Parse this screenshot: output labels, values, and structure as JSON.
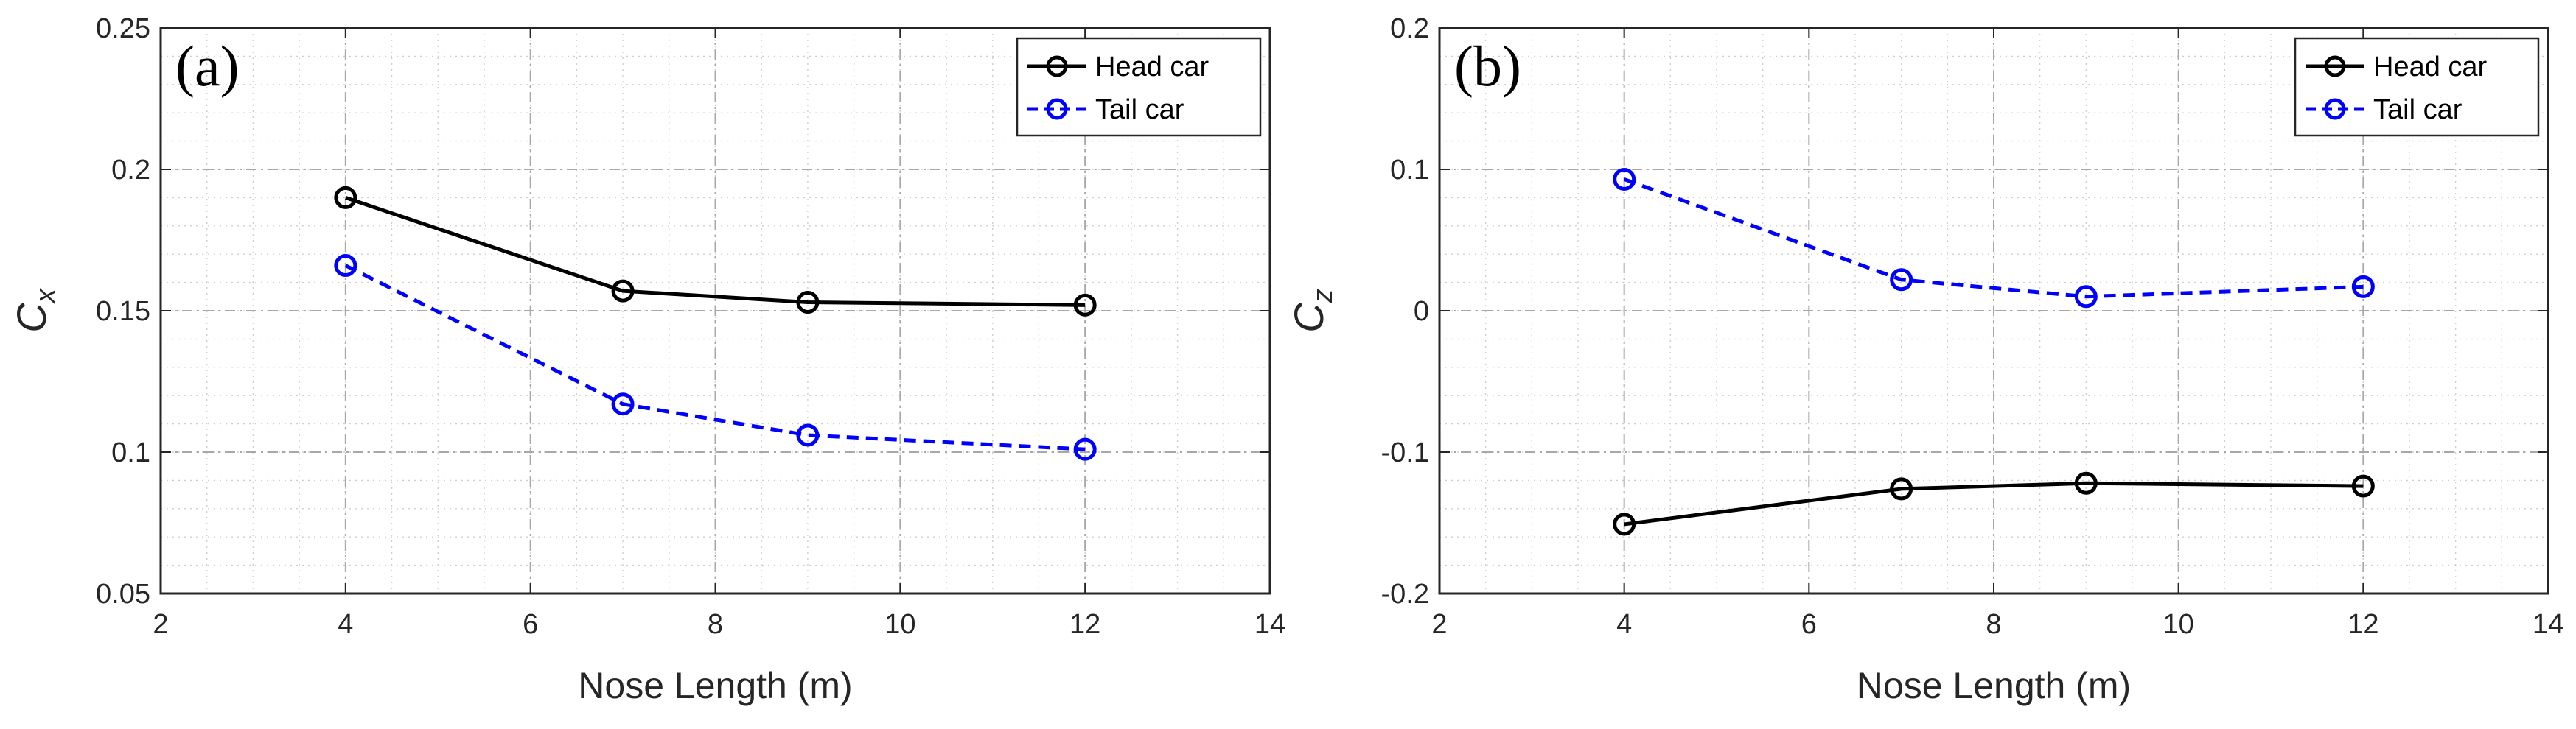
{
  "chart_data": [
    {
      "type": "line",
      "panel_label": "(a)",
      "xlabel": "Nose Length (m)",
      "ylabel": {
        "main": "C",
        "sub": "x"
      },
      "xlim": [
        2,
        14
      ],
      "ylim": [
        0.05,
        0.25
      ],
      "xticks": [
        2,
        4,
        6,
        8,
        10,
        12,
        14
      ],
      "yticks": [
        0.05,
        0.1,
        0.15,
        0.2,
        0.25
      ],
      "xtick_labels": [
        "2",
        "4",
        "6",
        "8",
        "10",
        "12",
        "14"
      ],
      "ytick_labels": [
        "0.05",
        "0.1",
        "0.15",
        "0.2",
        "0.25"
      ],
      "grid": true,
      "minor_grid": true,
      "legend": "top-right",
      "x": [
        4,
        7,
        9,
        12
      ],
      "series": [
        {
          "name": "Head car",
          "color": "#000000",
          "line_style": "solid",
          "marker": "circle",
          "values": [
            0.19,
            0.157,
            0.153,
            0.152
          ]
        },
        {
          "name": "Tail car",
          "color": "#0000ff",
          "line_style": "dashed",
          "marker": "circle",
          "values": [
            0.166,
            0.117,
            0.106,
            0.101
          ]
        }
      ]
    },
    {
      "type": "line",
      "panel_label": "(b)",
      "xlabel": "Nose Length (m)",
      "ylabel": {
        "main": "C",
        "sub": "z"
      },
      "xlim": [
        2,
        14
      ],
      "ylim": [
        -0.2,
        0.2
      ],
      "xticks": [
        2,
        4,
        6,
        8,
        10,
        12,
        14
      ],
      "yticks": [
        -0.2,
        -0.1,
        0,
        0.1,
        0.2
      ],
      "xtick_labels": [
        "2",
        "4",
        "6",
        "8",
        "10",
        "12",
        "14"
      ],
      "ytick_labels": [
        "-0.2",
        "-0.1",
        "0",
        "0.1",
        "0.2"
      ],
      "grid": true,
      "minor_grid": true,
      "legend": "top-right",
      "x": [
        4,
        7,
        9,
        12
      ],
      "series": [
        {
          "name": "Head car",
          "color": "#000000",
          "line_style": "solid",
          "marker": "circle",
          "values": [
            -0.151,
            -0.126,
            -0.122,
            -0.124
          ]
        },
        {
          "name": "Tail car",
          "color": "#0000ff",
          "line_style": "dashed",
          "marker": "circle",
          "values": [
            0.093,
            0.022,
            0.01,
            0.017
          ]
        }
      ]
    }
  ]
}
